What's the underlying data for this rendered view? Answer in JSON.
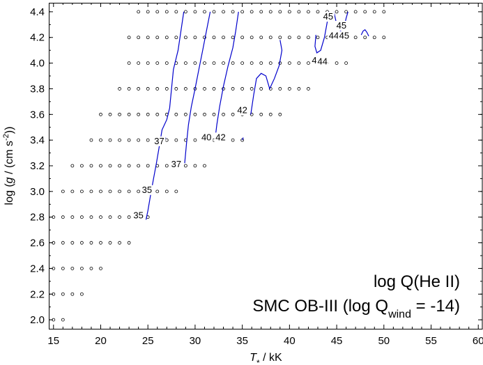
{
  "chart_data": {
    "type": "scatter",
    "xlabel_main": "T",
    "xlabel_sub": "*",
    "xlabel_unit": " / kK",
    "ylabel": "log (g / (cm s-2))",
    "ylabel_parts": {
      "pre": "log (",
      "g": "g",
      "mid": " / (cm s",
      "sup": "-2",
      "post": "))"
    },
    "xlim": [
      14.5,
      60.5
    ],
    "ylim": [
      1.93,
      4.47
    ],
    "x_ticks": [
      15,
      20,
      25,
      30,
      35,
      40,
      45,
      50,
      55,
      60
    ],
    "y_ticks": [
      2.0,
      2.2,
      2.4,
      2.6,
      2.8,
      3.0,
      3.2,
      3.4,
      3.6,
      3.8,
      4.0,
      4.2,
      4.4
    ],
    "grid": false,
    "annotation_line1": "log Q(He II)",
    "annotation_line2_main": "SMC OB-III (log Q",
    "annotation_line2_sub": "wind",
    "annotation_line2_end": " = -14)",
    "model_grid_rows": [
      {
        "logg": 4.4,
        "teff": [
          24,
          25,
          26,
          27,
          28,
          29,
          30,
          31,
          32,
          33,
          34,
          35,
          36,
          37,
          38,
          39,
          40,
          41,
          42,
          43,
          44,
          45,
          46,
          47,
          48,
          49,
          50
        ]
      },
      {
        "logg": 4.2,
        "teff": [
          23,
          24,
          25,
          26,
          27,
          28,
          29,
          30,
          31,
          32,
          33,
          34,
          35,
          36,
          37,
          38,
          39,
          40,
          41,
          42,
          43,
          44,
          45,
          46,
          47,
          48,
          49,
          50
        ]
      },
      {
        "logg": 4.0,
        "teff": [
          23,
          24,
          25,
          26,
          27,
          28,
          29,
          30,
          31,
          32,
          33,
          34,
          35,
          36,
          37,
          38,
          39,
          40,
          41,
          42,
          43,
          44,
          45,
          46
        ]
      },
      {
        "logg": 3.8,
        "teff": [
          22,
          23,
          24,
          25,
          26,
          27,
          28,
          29,
          30,
          31,
          32,
          33,
          34,
          35,
          36,
          37,
          38,
          39,
          40,
          41,
          42
        ]
      },
      {
        "logg": 3.6,
        "teff": [
          20,
          21,
          22,
          23,
          24,
          25,
          26,
          27,
          28,
          29,
          30,
          31,
          32,
          33,
          34,
          35,
          36,
          37,
          38,
          39
        ]
      },
      {
        "logg": 3.4,
        "teff": [
          19,
          20,
          21,
          22,
          23,
          24,
          25,
          26,
          27,
          28,
          29,
          30,
          31,
          32,
          33,
          34,
          35
        ]
      },
      {
        "logg": 3.2,
        "teff": [
          17,
          18,
          19,
          20,
          21,
          22,
          23,
          24,
          25,
          26,
          27,
          28,
          29,
          30,
          31
        ]
      },
      {
        "logg": 3.0,
        "teff": [
          16,
          17,
          18,
          19,
          20,
          21,
          22,
          23,
          24,
          25,
          26,
          27,
          28
        ]
      },
      {
        "logg": 2.8,
        "teff": [
          15,
          16,
          17,
          18,
          19,
          20,
          21,
          22,
          23,
          24,
          25
        ]
      },
      {
        "logg": 2.6,
        "teff": [
          15,
          16,
          17,
          18,
          19,
          20,
          21,
          22,
          23
        ]
      },
      {
        "logg": 2.4,
        "teff": [
          15,
          16,
          17,
          18,
          19,
          20
        ]
      },
      {
        "logg": 2.2,
        "teff": [
          15,
          16,
          17,
          18
        ]
      },
      {
        "logg": 2.0,
        "teff": [
          15,
          16
        ]
      }
    ],
    "contours": [
      {
        "level": "35",
        "points": [
          [
            24.8,
            2.78
          ],
          [
            25.0,
            2.85
          ],
          [
            25.3,
            2.98
          ],
          [
            25.6,
            3.1
          ],
          [
            25.9,
            3.22
          ],
          [
            26.2,
            3.35
          ],
          [
            26.5,
            3.48
          ],
          [
            27.0,
            3.56
          ],
          [
            27.3,
            3.65
          ],
          [
            27.5,
            3.8
          ],
          [
            27.7,
            3.95
          ],
          [
            28.2,
            4.1
          ],
          [
            28.5,
            4.25
          ],
          [
            28.8,
            4.4
          ]
        ]
      },
      {
        "level": "37",
        "points": [
          [
            28.9,
            3.22
          ],
          [
            29.1,
            3.38
          ],
          [
            29.3,
            3.52
          ],
          [
            29.6,
            3.66
          ],
          [
            30.0,
            3.8
          ],
          [
            30.4,
            3.95
          ],
          [
            30.8,
            4.1
          ],
          [
            31.2,
            4.25
          ],
          [
            31.6,
            4.4
          ]
        ]
      },
      {
        "level": "40",
        "points": [
          [
            32.1,
            3.4
          ],
          [
            32.3,
            3.52
          ],
          [
            32.6,
            3.66
          ],
          [
            33.0,
            3.82
          ],
          [
            33.5,
            3.98
          ],
          [
            34.0,
            4.12
          ],
          [
            34.3,
            4.25
          ],
          [
            34.6,
            4.4
          ]
        ]
      },
      {
        "level": "42",
        "points": [
          [
            35.9,
            3.6
          ],
          [
            36.2,
            3.75
          ],
          [
            36.5,
            3.88
          ],
          [
            37.0,
            3.92
          ],
          [
            37.5,
            3.9
          ],
          [
            37.9,
            3.8
          ],
          [
            38.4,
            3.88
          ],
          [
            38.9,
            3.98
          ],
          [
            39.2,
            4.1
          ],
          [
            39.0,
            4.18
          ]
        ]
      },
      {
        "level": "44",
        "points": [
          [
            42.8,
            4.22
          ],
          [
            42.7,
            4.13
          ],
          [
            42.9,
            4.08
          ],
          [
            43.3,
            4.1
          ],
          [
            43.7,
            4.2
          ],
          [
            44.0,
            4.32
          ],
          [
            44.2,
            4.4
          ]
        ]
      },
      {
        "level": "45",
        "points": [
          [
            44.7,
            4.4
          ],
          [
            45.0,
            4.3
          ],
          [
            45.4,
            4.25
          ],
          [
            45.8,
            4.28
          ],
          [
            46.0,
            4.35
          ],
          [
            46.2,
            4.4
          ]
        ]
      },
      {
        "level": "45",
        "points": [
          [
            47.6,
            4.22
          ],
          [
            47.8,
            4.25
          ],
          [
            48.0,
            4.26
          ],
          [
            48.2,
            4.24
          ],
          [
            48.4,
            4.21
          ]
        ]
      },
      {
        "level": "",
        "points": [
          [
            26.7,
            3.39
          ],
          [
            26.9,
            3.42
          ]
        ]
      },
      {
        "level": "",
        "points": [
          [
            35.0,
            3.4
          ],
          [
            35.1,
            3.42
          ]
        ]
      }
    ],
    "contour_labels": [
      {
        "text": "35",
        "x": 24.0,
        "y": 2.8
      },
      {
        "text": "35",
        "x": 24.9,
        "y": 3.0
      },
      {
        "text": "37",
        "x": 26.2,
        "y": 3.38
      },
      {
        "text": "37",
        "x": 28.0,
        "y": 3.2
      },
      {
        "text": "40",
        "x": 31.2,
        "y": 3.41
      },
      {
        "text": "42",
        "x": 32.7,
        "y": 3.41
      },
      {
        "text": "42",
        "x": 35.0,
        "y": 3.62
      },
      {
        "text": "44",
        "x": 42.9,
        "y": 4.01
      },
      {
        "text": "44",
        "x": 43.5,
        "y": 4.0
      },
      {
        "text": "45",
        "x": 44.1,
        "y": 4.35
      },
      {
        "text": "44",
        "x": 44.7,
        "y": 4.2
      },
      {
        "text": "45",
        "x": 45.5,
        "y": 4.28
      },
      {
        "text": "45",
        "x": 45.8,
        "y": 4.2
      }
    ],
    "colors": {
      "contour": "#0000cc",
      "points": "#000000",
      "axes": "#000000"
    }
  }
}
